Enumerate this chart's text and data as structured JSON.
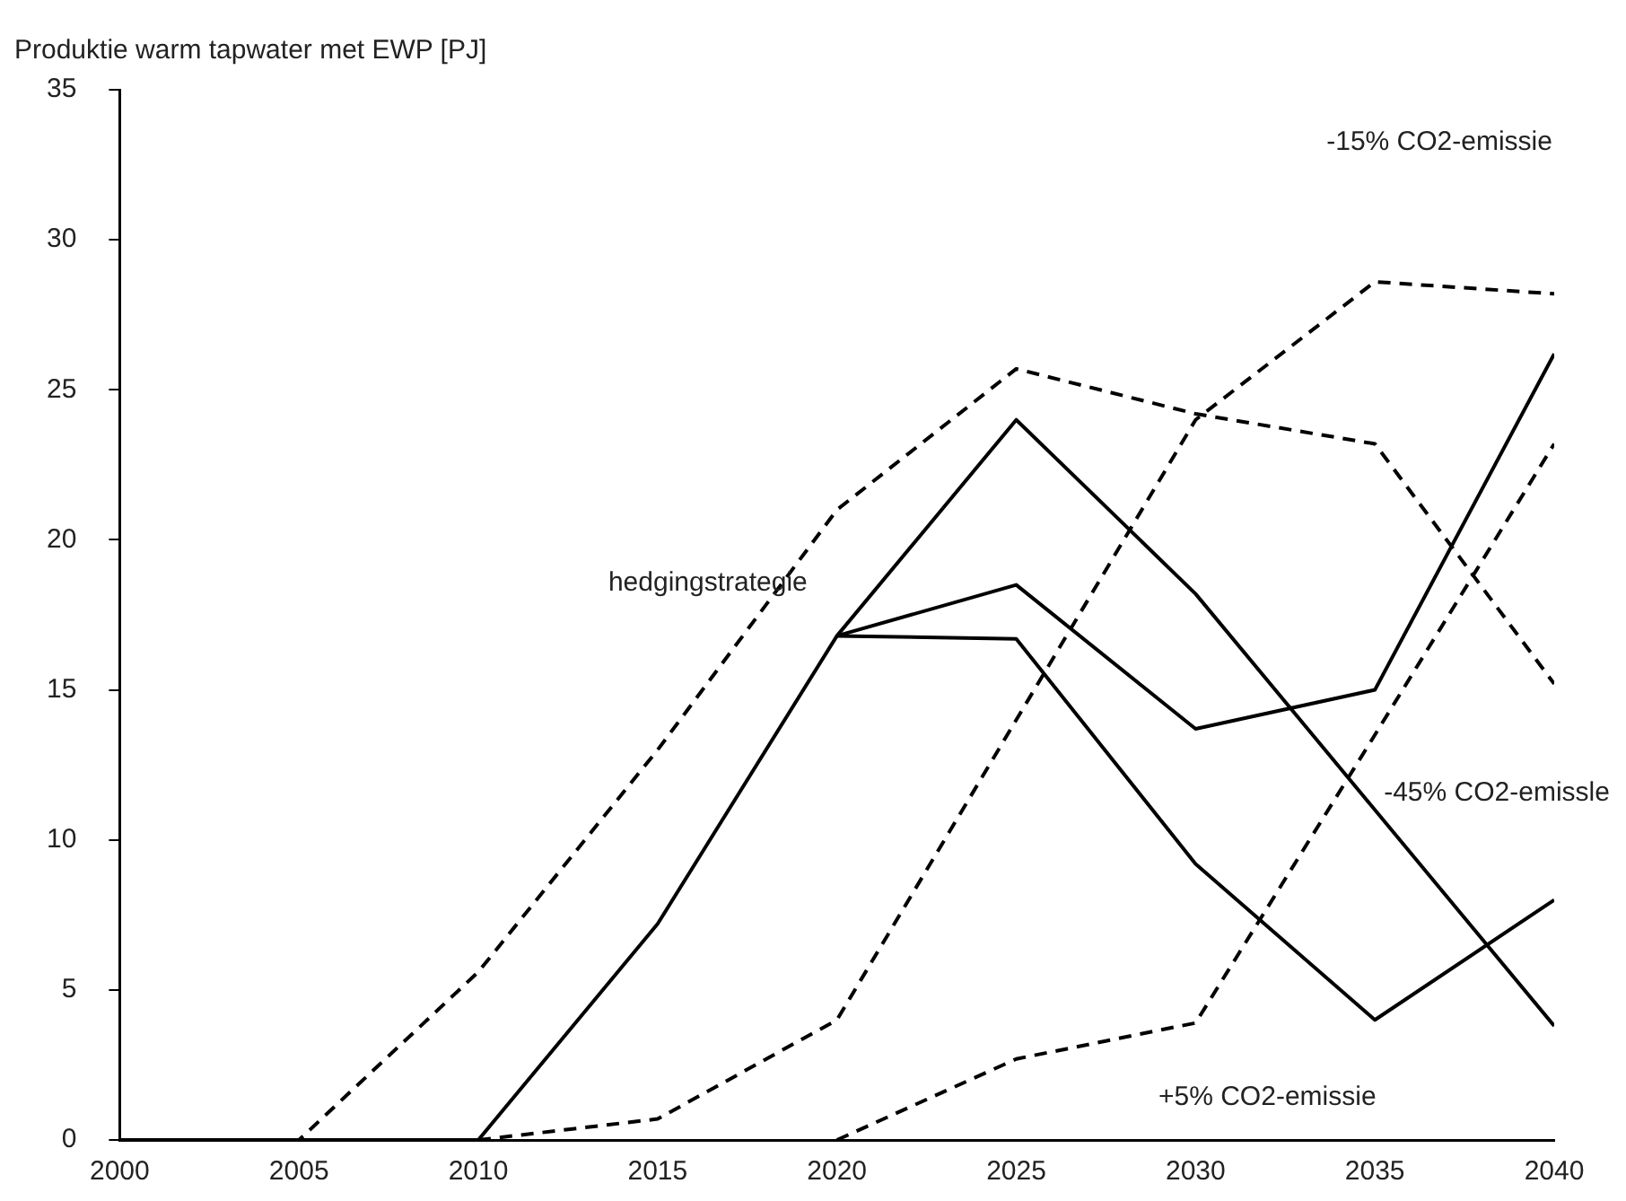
{
  "chart_data": {
    "type": "line",
    "ylabel": "Produktie warm tapwater met EWP [PJ]",
    "x": [
      2000,
      2005,
      2010,
      2015,
      2020,
      2025,
      2030,
      2035,
      2040
    ],
    "xlim": [
      2000,
      2040
    ],
    "xticks": [
      2000,
      2005,
      2010,
      2015,
      2020,
      2025,
      2030,
      2035,
      2040
    ],
    "ylim": [
      0,
      35
    ],
    "yticks": [
      0,
      5,
      10,
      15,
      20,
      25,
      30,
      35
    ],
    "grid": false,
    "legend": false,
    "marker": "none",
    "series": [
      {
        "color": "#000000",
        "line_style": "solid",
        "values": [
          0,
          0,
          0,
          7.2,
          16.8,
          24.0,
          18.2,
          11.0,
          3.8
        ]
      },
      {
        "color": "#000000",
        "line_style": "solid",
        "values": [
          null,
          null,
          null,
          null,
          16.8,
          18.5,
          13.7,
          15.0,
          26.2
        ]
      },
      {
        "color": "#000000",
        "line_style": "solid",
        "values": [
          null,
          null,
          null,
          null,
          16.8,
          16.7,
          9.2,
          4.0,
          8.0
        ]
      },
      {
        "color": "#000000",
        "line_style": "dashed",
        "values": [
          0,
          0,
          5.6,
          13.0,
          21.0,
          25.7,
          24.2,
          23.2,
          15.2
        ]
      },
      {
        "color": "#000000",
        "line_style": "dashed",
        "values": [
          null,
          null,
          0,
          0.7,
          4.0,
          14.0,
          24.0,
          28.6,
          28.2
        ]
      },
      {
        "color": "#000000",
        "line_style": "dashed",
        "values": [
          null,
          null,
          null,
          null,
          0,
          2.7,
          3.9,
          13.5,
          23.2
        ]
      }
    ],
    "annotations": [
      "-15% CO2-emissie",
      "hedgingstrategie",
      "-45% CO2-emissle",
      "+5% CO2-emissie"
    ]
  }
}
